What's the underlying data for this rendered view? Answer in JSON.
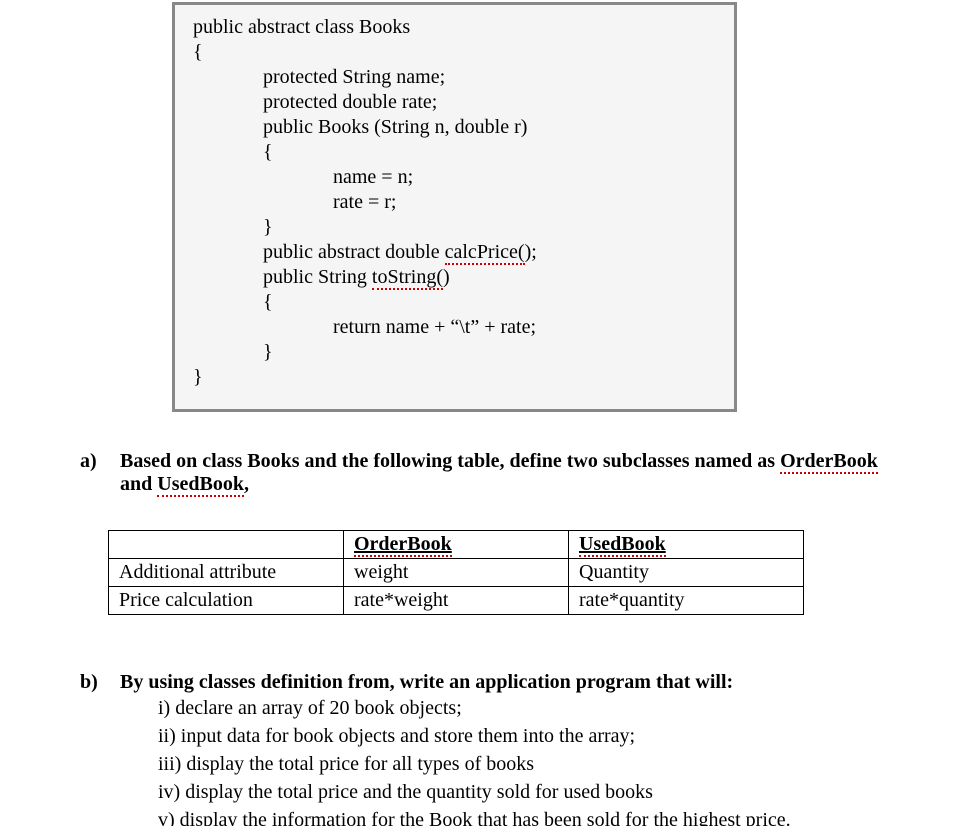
{
  "code": {
    "lines": [
      {
        "text": "public abstract class Books",
        "indent": 0
      },
      {
        "text": "{",
        "indent": 0
      },
      {
        "text": "protected String name;",
        "indent": 1
      },
      {
        "text": "protected double rate;",
        "indent": 1
      },
      {
        "text": "public Books (String n, double r)",
        "indent": 1
      },
      {
        "text": "{",
        "indent": 1
      },
      {
        "text": "name = n;",
        "indent": 2
      },
      {
        "text": "rate = r;",
        "indent": 2
      },
      {
        "text": "}",
        "indent": 1
      },
      {
        "prefix": "public abstract double ",
        "squig": "calcPrice(",
        "suffix": ");",
        "indent": 1
      },
      {
        "prefix": "public String ",
        "squig": "toString(",
        "suffix": ")",
        "indent": 1
      },
      {
        "text": "{",
        "indent": 1
      },
      {
        "text": "return name + “\\t” + rate;",
        "indent": 2
      },
      {
        "text": "}",
        "indent": 1
      },
      {
        "text": "}",
        "indent": 0
      }
    ]
  },
  "question_a": {
    "label": "a)",
    "text_before": "Based on class Books and the following table, define two subclasses named as ",
    "squig1": "OrderBook",
    "mid": " and ",
    "squig2": "UsedBook",
    "after": ","
  },
  "table": {
    "header": {
      "c1": "",
      "c2": "OrderBook",
      "c3": "UsedBook"
    },
    "rows": [
      {
        "c1": "Additional attribute",
        "c2": "weight",
        "c3": "Quantity"
      },
      {
        "c1": "Price calculation",
        "c2": "rate*weight",
        "c3": "rate*quantity"
      }
    ]
  },
  "question_b": {
    "label": "b)",
    "text": "By using classes definition from, write an application program that will:",
    "items": [
      "i) declare an array of 20 book objects;",
      "ii) input data for book objects and store them into the array;",
      "iii) display the total price for all types of books",
      "iv) display the total price and the quantity sold for used books",
      "v) display the information for the Book that has been sold for the highest price."
    ]
  },
  "style": {
    "background": "#ffffff",
    "border_color": "#888888",
    "code_bg": "#f5f5f5",
    "text_color": "#000000",
    "squig_color": "#cc0000",
    "font_size": 20
  }
}
